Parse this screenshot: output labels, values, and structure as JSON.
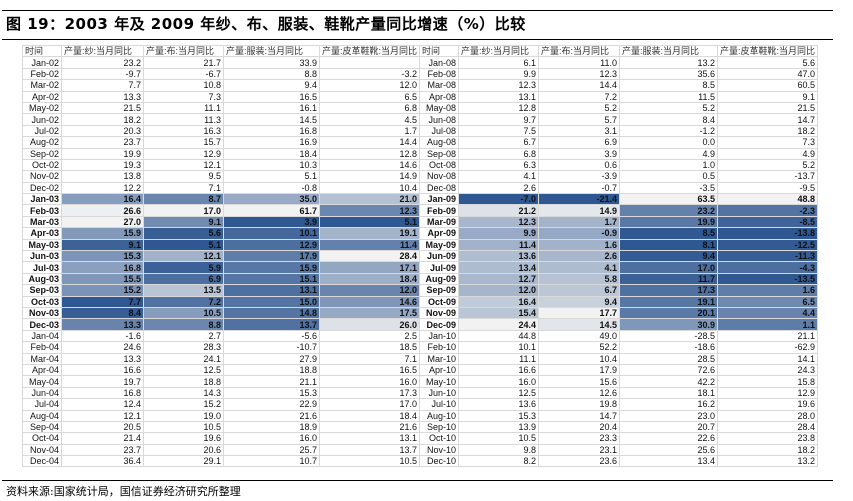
{
  "title": "图 19：2003 年及 2009 年纱、布、服装、鞋靴产量同比增速（%）比较",
  "source": "资料来源:国家统计局，国信证券经济研究所整理",
  "headers": [
    "时间",
    "产量:纱:当月同比",
    "产量:布:当月同比",
    "产量:服装:当月同比",
    "产量:皮革鞋靴:当月同比"
  ],
  "colors": {
    "heat_low": "#2f5791",
    "heat_high": "#f2f2f2"
  },
  "highlight_rows": [
    12,
    23
  ],
  "left_rows": [
    [
      "Jan-02",
      "23.2",
      "21.7",
      "33.9",
      ""
    ],
    [
      "Feb-02",
      "-9.7",
      "-6.7",
      "8.8",
      "-3.2"
    ],
    [
      "Mar-02",
      "7.7",
      "10.8",
      "9.4",
      "12.0"
    ],
    [
      "Apr-02",
      "13.3",
      "7.3",
      "16.5",
      "6.5"
    ],
    [
      "May-02",
      "21.5",
      "11.1",
      "16.1",
      "6.8"
    ],
    [
      "Jun-02",
      "18.2",
      "11.3",
      "14.5",
      "4.5"
    ],
    [
      "Jul-02",
      "20.3",
      "16.3",
      "16.8",
      "1.7"
    ],
    [
      "Aug-02",
      "23.7",
      "15.7",
      "16.9",
      "14.4"
    ],
    [
      "Sep-02",
      "19.9",
      "12.9",
      "18.4",
      "12.8"
    ],
    [
      "Oct-02",
      "19.3",
      "12.1",
      "10.3",
      "14.6"
    ],
    [
      "Nov-02",
      "13.8",
      "9.5",
      "5.1",
      "14.9"
    ],
    [
      "Dec-02",
      "12.2",
      "7.1",
      "-0.8",
      "10.4"
    ],
    [
      "Jan-03",
      "16.4",
      "8.7",
      "35.0",
      "21.0"
    ],
    [
      "Feb-03",
      "26.6",
      "17.0",
      "61.7",
      "12.3"
    ],
    [
      "Mar-03",
      "27.0",
      "9.1",
      "3.9",
      "5.1"
    ],
    [
      "Apr-03",
      "15.9",
      "5.6",
      "10.1",
      "19.1"
    ],
    [
      "May-03",
      "9.1",
      "5.1",
      "12.9",
      "11.4"
    ],
    [
      "Jun-03",
      "15.3",
      "12.1",
      "17.9",
      "28.4"
    ],
    [
      "Jul-03",
      "16.8",
      "5.9",
      "15.9",
      "17.1"
    ],
    [
      "Aug-03",
      "15.5",
      "6.9",
      "15.1",
      "18.4"
    ],
    [
      "Sep-03",
      "15.2",
      "13.5",
      "13.1",
      "12.0"
    ],
    [
      "Oct-03",
      "7.7",
      "7.2",
      "15.0",
      "14.6"
    ],
    [
      "Nov-03",
      "8.4",
      "10.5",
      "14.8",
      "17.5"
    ],
    [
      "Dec-03",
      "13.3",
      "8.8",
      "13.7",
      "26.0"
    ],
    [
      "Jan-04",
      "-1.6",
      "2.7",
      "-5.6",
      "2.5"
    ],
    [
      "Feb-04",
      "24.6",
      "28.3",
      "-10.7",
      "18.5"
    ],
    [
      "Mar-04",
      "13.3",
      "24.1",
      "27.9",
      "7.1"
    ],
    [
      "Apr-04",
      "16.6",
      "12.5",
      "18.8",
      "16.5"
    ],
    [
      "May-04",
      "19.7",
      "18.8",
      "21.1",
      "16.0"
    ],
    [
      "Jun-04",
      "16.8",
      "14.3",
      "15.3",
      "17.3"
    ],
    [
      "Jul-04",
      "12.4",
      "15.2",
      "22.9",
      "17.0"
    ],
    [
      "Aug-04",
      "12.1",
      "19.0",
      "21.6",
      "18.4"
    ],
    [
      "Sep-04",
      "20.5",
      "10.5",
      "18.9",
      "21.6"
    ],
    [
      "Oct-04",
      "21.4",
      "19.6",
      "16.0",
      "13.1"
    ],
    [
      "Nov-04",
      "23.7",
      "20.6",
      "25.7",
      "13.7"
    ],
    [
      "Dec-04",
      "36.4",
      "29.1",
      "10.7",
      "10.5"
    ]
  ],
  "right_rows": [
    [
      "Jan-08",
      "6.1",
      "11.0",
      "13.2",
      "5.6"
    ],
    [
      "Feb-08",
      "9.9",
      "12.3",
      "35.6",
      "47.0"
    ],
    [
      "Mar-08",
      "12.3",
      "14.4",
      "8.5",
      "60.5"
    ],
    [
      "Apr-08",
      "13.1",
      "7.2",
      "11.5",
      "9.1"
    ],
    [
      "May-08",
      "12.8",
      "5.2",
      "5.2",
      "21.5"
    ],
    [
      "Jun-08",
      "9.7",
      "5.7",
      "8.4",
      "14.7"
    ],
    [
      "Jul-08",
      "7.5",
      "3.1",
      "-1.2",
      "18.2"
    ],
    [
      "Aug-08",
      "6.7",
      "6.9",
      "0.0",
      "7.3"
    ],
    [
      "Sep-08",
      "6.8",
      "3.9",
      "4.9",
      "4.9"
    ],
    [
      "Oct-08",
      "6.3",
      "0.6",
      "1.0",
      "5.2"
    ],
    [
      "Nov-08",
      "4.1",
      "-3.9",
      "0.5",
      "-13.7"
    ],
    [
      "Dec-08",
      "2.6",
      "-0.7",
      "-3.5",
      "-9.5"
    ],
    [
      "Jan-09",
      "-7.0",
      "-21.4",
      "63.5",
      "48.8"
    ],
    [
      "Feb-09",
      "21.2",
      "14.9",
      "23.2",
      "-2.3"
    ],
    [
      "Mar-09",
      "12.3",
      "1.7",
      "19.9",
      "-8.5"
    ],
    [
      "Apr-09",
      "9.9",
      "-0.9",
      "8.5",
      "-13.8"
    ],
    [
      "May-09",
      "11.4",
      "1.6",
      "8.1",
      "-12.5"
    ],
    [
      "Jun-09",
      "13.6",
      "2.6",
      "9.4",
      "-11.3"
    ],
    [
      "Jul-09",
      "13.4",
      "4.1",
      "17.0",
      "-4.3"
    ],
    [
      "Aug-09",
      "12.7",
      "5.8",
      "11.7",
      "-13.5"
    ],
    [
      "Sep-09",
      "12.0",
      "6.7",
      "17.3",
      "1.6"
    ],
    [
      "Oct-09",
      "16.4",
      "9.4",
      "19.1",
      "6.5"
    ],
    [
      "Nov-09",
      "15.4",
      "17.7",
      "20.1",
      "4.4"
    ],
    [
      "Dec-09",
      "24.4",
      "14.5",
      "30.9",
      "1.1"
    ],
    [
      "Jan-10",
      "44.8",
      "49.0",
      "-28.5",
      "21.1"
    ],
    [
      "Feb-10",
      "10.1",
      "52.2",
      "-18.6",
      "-62.9"
    ],
    [
      "Mar-10",
      "11.1",
      "10.4",
      "28.5",
      "14.1"
    ],
    [
      "Apr-10",
      "16.6",
      "17.9",
      "72.6",
      "24.3"
    ],
    [
      "May-10",
      "16.0",
      "15.6",
      "42.2",
      "15.8"
    ],
    [
      "Jun-10",
      "12.5",
      "12.6",
      "18.1",
      "12.9"
    ],
    [
      "Jul-10",
      "13.6",
      "19.8",
      "16.2",
      "19.6"
    ],
    [
      "Aug-10",
      "15.3",
      "14.7",
      "23.0",
      "28.0"
    ],
    [
      "Sep-10",
      "13.9",
      "20.4",
      "20.7",
      "28.4"
    ],
    [
      "Oct-10",
      "10.5",
      "23.3",
      "22.6",
      "23.8"
    ],
    [
      "Nov-10",
      "9.8",
      "23.1",
      "25.6",
      "18.2"
    ],
    [
      "Dec-10",
      "8.2",
      "23.6",
      "13.4",
      "13.2"
    ]
  ]
}
